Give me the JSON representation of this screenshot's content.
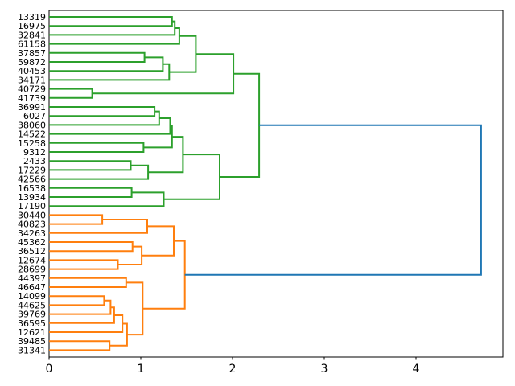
{
  "chart_data": {
    "type": "dendrogram",
    "orientation": "right",
    "title": "",
    "xlabel": "",
    "ylabel": "",
    "grid": false,
    "legend": null,
    "xlim": [
      0,
      4.95
    ],
    "x_ticks": [
      "0",
      "1",
      "2",
      "3",
      "4"
    ],
    "x_tick_values": [
      0,
      1,
      2,
      3,
      4
    ],
    "leaf_labels": [
      "13319",
      "16975",
      "32841",
      "61158",
      "37857",
      "59872",
      "40453",
      "34171",
      "40729",
      "41739",
      "36991",
      "6027",
      "38060",
      "14522",
      "15258",
      "9312",
      "2433",
      "17229",
      "42566",
      "16538",
      "13934",
      "17190",
      "30440",
      "40823",
      "34263",
      "45362",
      "36512",
      "12674",
      "28699",
      "44397",
      "46647",
      "14099",
      "44625",
      "39769",
      "36595",
      "12621",
      "39485",
      "31341"
    ],
    "colors": {
      "green": "#2ca02c",
      "orange": "#ff7f0e",
      "blue": "#1f77b4",
      "axis": "#000000"
    },
    "merges": [
      {
        "a": 0,
        "b": 1,
        "dist": 1.34,
        "color": "green"
      },
      {
        "a": 38,
        "b": 2,
        "dist": 1.37,
        "color": "green"
      },
      {
        "a": 39,
        "b": 3,
        "dist": 1.42,
        "color": "green"
      },
      {
        "a": 4,
        "b": 5,
        "dist": 1.04,
        "color": "green"
      },
      {
        "a": 41,
        "b": 6,
        "dist": 1.24,
        "color": "green"
      },
      {
        "a": 42,
        "b": 7,
        "dist": 1.31,
        "color": "green"
      },
      {
        "a": 40,
        "b": 43,
        "dist": 1.6,
        "color": "green"
      },
      {
        "a": 8,
        "b": 9,
        "dist": 0.47,
        "color": "green"
      },
      {
        "a": 44,
        "b": 45,
        "dist": 2.01,
        "color": "green"
      },
      {
        "a": 10,
        "b": 11,
        "dist": 1.15,
        "color": "green"
      },
      {
        "a": 47,
        "b": 12,
        "dist": 1.2,
        "color": "green"
      },
      {
        "a": 48,
        "b": 13,
        "dist": 1.32,
        "color": "green"
      },
      {
        "a": 14,
        "b": 15,
        "dist": 1.03,
        "color": "green"
      },
      {
        "a": 49,
        "b": 50,
        "dist": 1.34,
        "color": "green"
      },
      {
        "a": 16,
        "b": 17,
        "dist": 0.89,
        "color": "green"
      },
      {
        "a": 52,
        "b": 18,
        "dist": 1.08,
        "color": "green"
      },
      {
        "a": 51,
        "b": 53,
        "dist": 1.46,
        "color": "green"
      },
      {
        "a": 19,
        "b": 20,
        "dist": 0.9,
        "color": "green"
      },
      {
        "a": 55,
        "b": 21,
        "dist": 1.25,
        "color": "green"
      },
      {
        "a": 54,
        "b": 56,
        "dist": 1.86,
        "color": "green"
      },
      {
        "a": 46,
        "b": 57,
        "dist": 2.29,
        "color": "green"
      },
      {
        "a": 22,
        "b": 23,
        "dist": 0.58,
        "color": "orange"
      },
      {
        "a": 59,
        "b": 24,
        "dist": 1.07,
        "color": "orange"
      },
      {
        "a": 25,
        "b": 26,
        "dist": 0.91,
        "color": "orange"
      },
      {
        "a": 27,
        "b": 28,
        "dist": 0.75,
        "color": "orange"
      },
      {
        "a": 61,
        "b": 62,
        "dist": 1.01,
        "color": "orange"
      },
      {
        "a": 60,
        "b": 63,
        "dist": 1.36,
        "color": "orange"
      },
      {
        "a": 29,
        "b": 30,
        "dist": 0.84,
        "color": "orange"
      },
      {
        "a": 31,
        "b": 32,
        "dist": 0.6,
        "color": "orange"
      },
      {
        "a": 66,
        "b": 33,
        "dist": 0.67,
        "color": "orange"
      },
      {
        "a": 67,
        "b": 34,
        "dist": 0.71,
        "color": "orange"
      },
      {
        "a": 68,
        "b": 35,
        "dist": 0.8,
        "color": "orange"
      },
      {
        "a": 36,
        "b": 37,
        "dist": 0.66,
        "color": "orange"
      },
      {
        "a": 69,
        "b": 70,
        "dist": 0.85,
        "color": "orange"
      },
      {
        "a": 65,
        "b": 71,
        "dist": 1.02,
        "color": "orange"
      },
      {
        "a": 64,
        "b": 72,
        "dist": 1.48,
        "color": "orange"
      },
      {
        "a": 58,
        "b": 73,
        "dist": 4.71,
        "color": "blue"
      }
    ]
  }
}
